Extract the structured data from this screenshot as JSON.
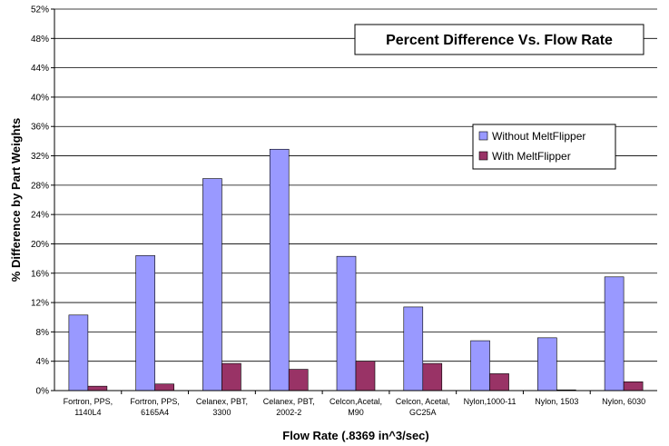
{
  "chart_data": {
    "type": "bar",
    "title": "Percent Difference Vs. Flow Rate",
    "xlabel": "Flow Rate (.8369 in^3/sec)",
    "ylabel": "% Difference by Part Weights",
    "ylim": [
      0,
      52
    ],
    "yticks": [
      "0%",
      "4%",
      "8%",
      "12%",
      "16%",
      "20%",
      "24%",
      "28%",
      "32%",
      "36%",
      "40%",
      "44%",
      "48%",
      "52%"
    ],
    "grid": true,
    "legend_position": "right",
    "categories": [
      [
        "Fortron, PPS,",
        "1140L4"
      ],
      [
        "Fortron, PPS,",
        "6165A4"
      ],
      [
        "Celanex, PBT,",
        "3300"
      ],
      [
        "Celanex, PBT,",
        "2002-2"
      ],
      [
        "Celcon,Acetal,",
        "M90"
      ],
      [
        "Celcon, Acetal,",
        "GC25A"
      ],
      [
        "Nylon,1000-11"
      ],
      [
        "Nylon, 1503"
      ],
      [
        "Nylon, 6030"
      ]
    ],
    "series": [
      {
        "name": "Without MeltFlipper",
        "color": "#9999ff",
        "values": [
          10.3,
          18.4,
          28.9,
          32.9,
          18.3,
          11.4,
          6.8,
          7.2,
          15.5
        ]
      },
      {
        "name": "With MeltFlipper",
        "color": "#993366",
        "values": [
          0.6,
          0.9,
          3.7,
          2.9,
          4.0,
          3.7,
          2.3,
          0.1,
          1.2
        ]
      }
    ]
  }
}
